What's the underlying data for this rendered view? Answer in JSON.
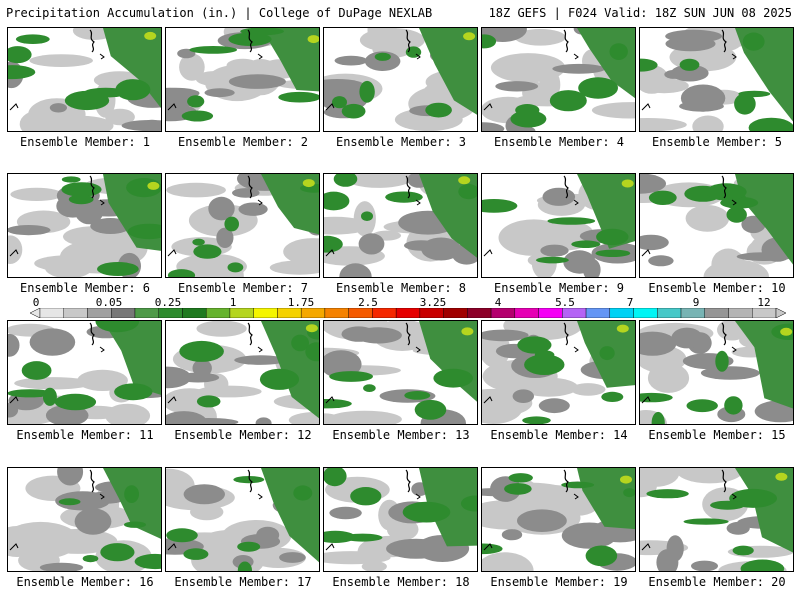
{
  "header": {
    "title": "Precipitation Accumulation (in.) | College of DuPage NEXLAB",
    "run_info": "18Z GEFS | F024 Valid: 18Z SUN JUN 08 2025"
  },
  "colorbar": {
    "tick_labels": [
      "0",
      "0.05",
      "0.25",
      "1",
      "1.75",
      "2.5",
      "3.25",
      "4",
      "5.5",
      "7",
      "9",
      "12"
    ],
    "colors": [
      "#e6e6e6",
      "#c8c8c8",
      "#a0a0a0",
      "#787878",
      "#4e9a48",
      "#2e8b2e",
      "#1f7a1f",
      "#66b32e",
      "#b5d51f",
      "#f5f500",
      "#f5d200",
      "#f5a800",
      "#f58200",
      "#f55a00",
      "#f52800",
      "#e60000",
      "#c80000",
      "#a00000",
      "#8c0028",
      "#b4006e",
      "#e600b4",
      "#f500f5",
      "#b464f5",
      "#6496f5",
      "#00d2f5",
      "#00f5f5",
      "#46c8c8",
      "#78b4b4",
      "#969696",
      "#b4b4b4",
      "#c8c8c8"
    ]
  },
  "panels": [
    {
      "label": "Ensemble Member: 1"
    },
    {
      "label": "Ensemble Member: 2"
    },
    {
      "label": "Ensemble Member: 3"
    },
    {
      "label": "Ensemble Member: 4"
    },
    {
      "label": "Ensemble Member: 5"
    },
    {
      "label": "Ensemble Member: 6"
    },
    {
      "label": "Ensemble Member: 7"
    },
    {
      "label": "Ensemble Member: 8"
    },
    {
      "label": "Ensemble Member: 9"
    },
    {
      "label": "Ensemble Member: 10"
    },
    {
      "label": "Ensemble Member: 11"
    },
    {
      "label": "Ensemble Member: 12"
    },
    {
      "label": "Ensemble Member: 13"
    },
    {
      "label": "Ensemble Member: 14"
    },
    {
      "label": "Ensemble Member: 15"
    },
    {
      "label": "Ensemble Member: 16"
    },
    {
      "label": "Ensemble Member: 17"
    },
    {
      "label": "Ensemble Member: 18"
    },
    {
      "label": "Ensemble Member: 19"
    },
    {
      "label": "Ensemble Member: 20"
    }
  ]
}
